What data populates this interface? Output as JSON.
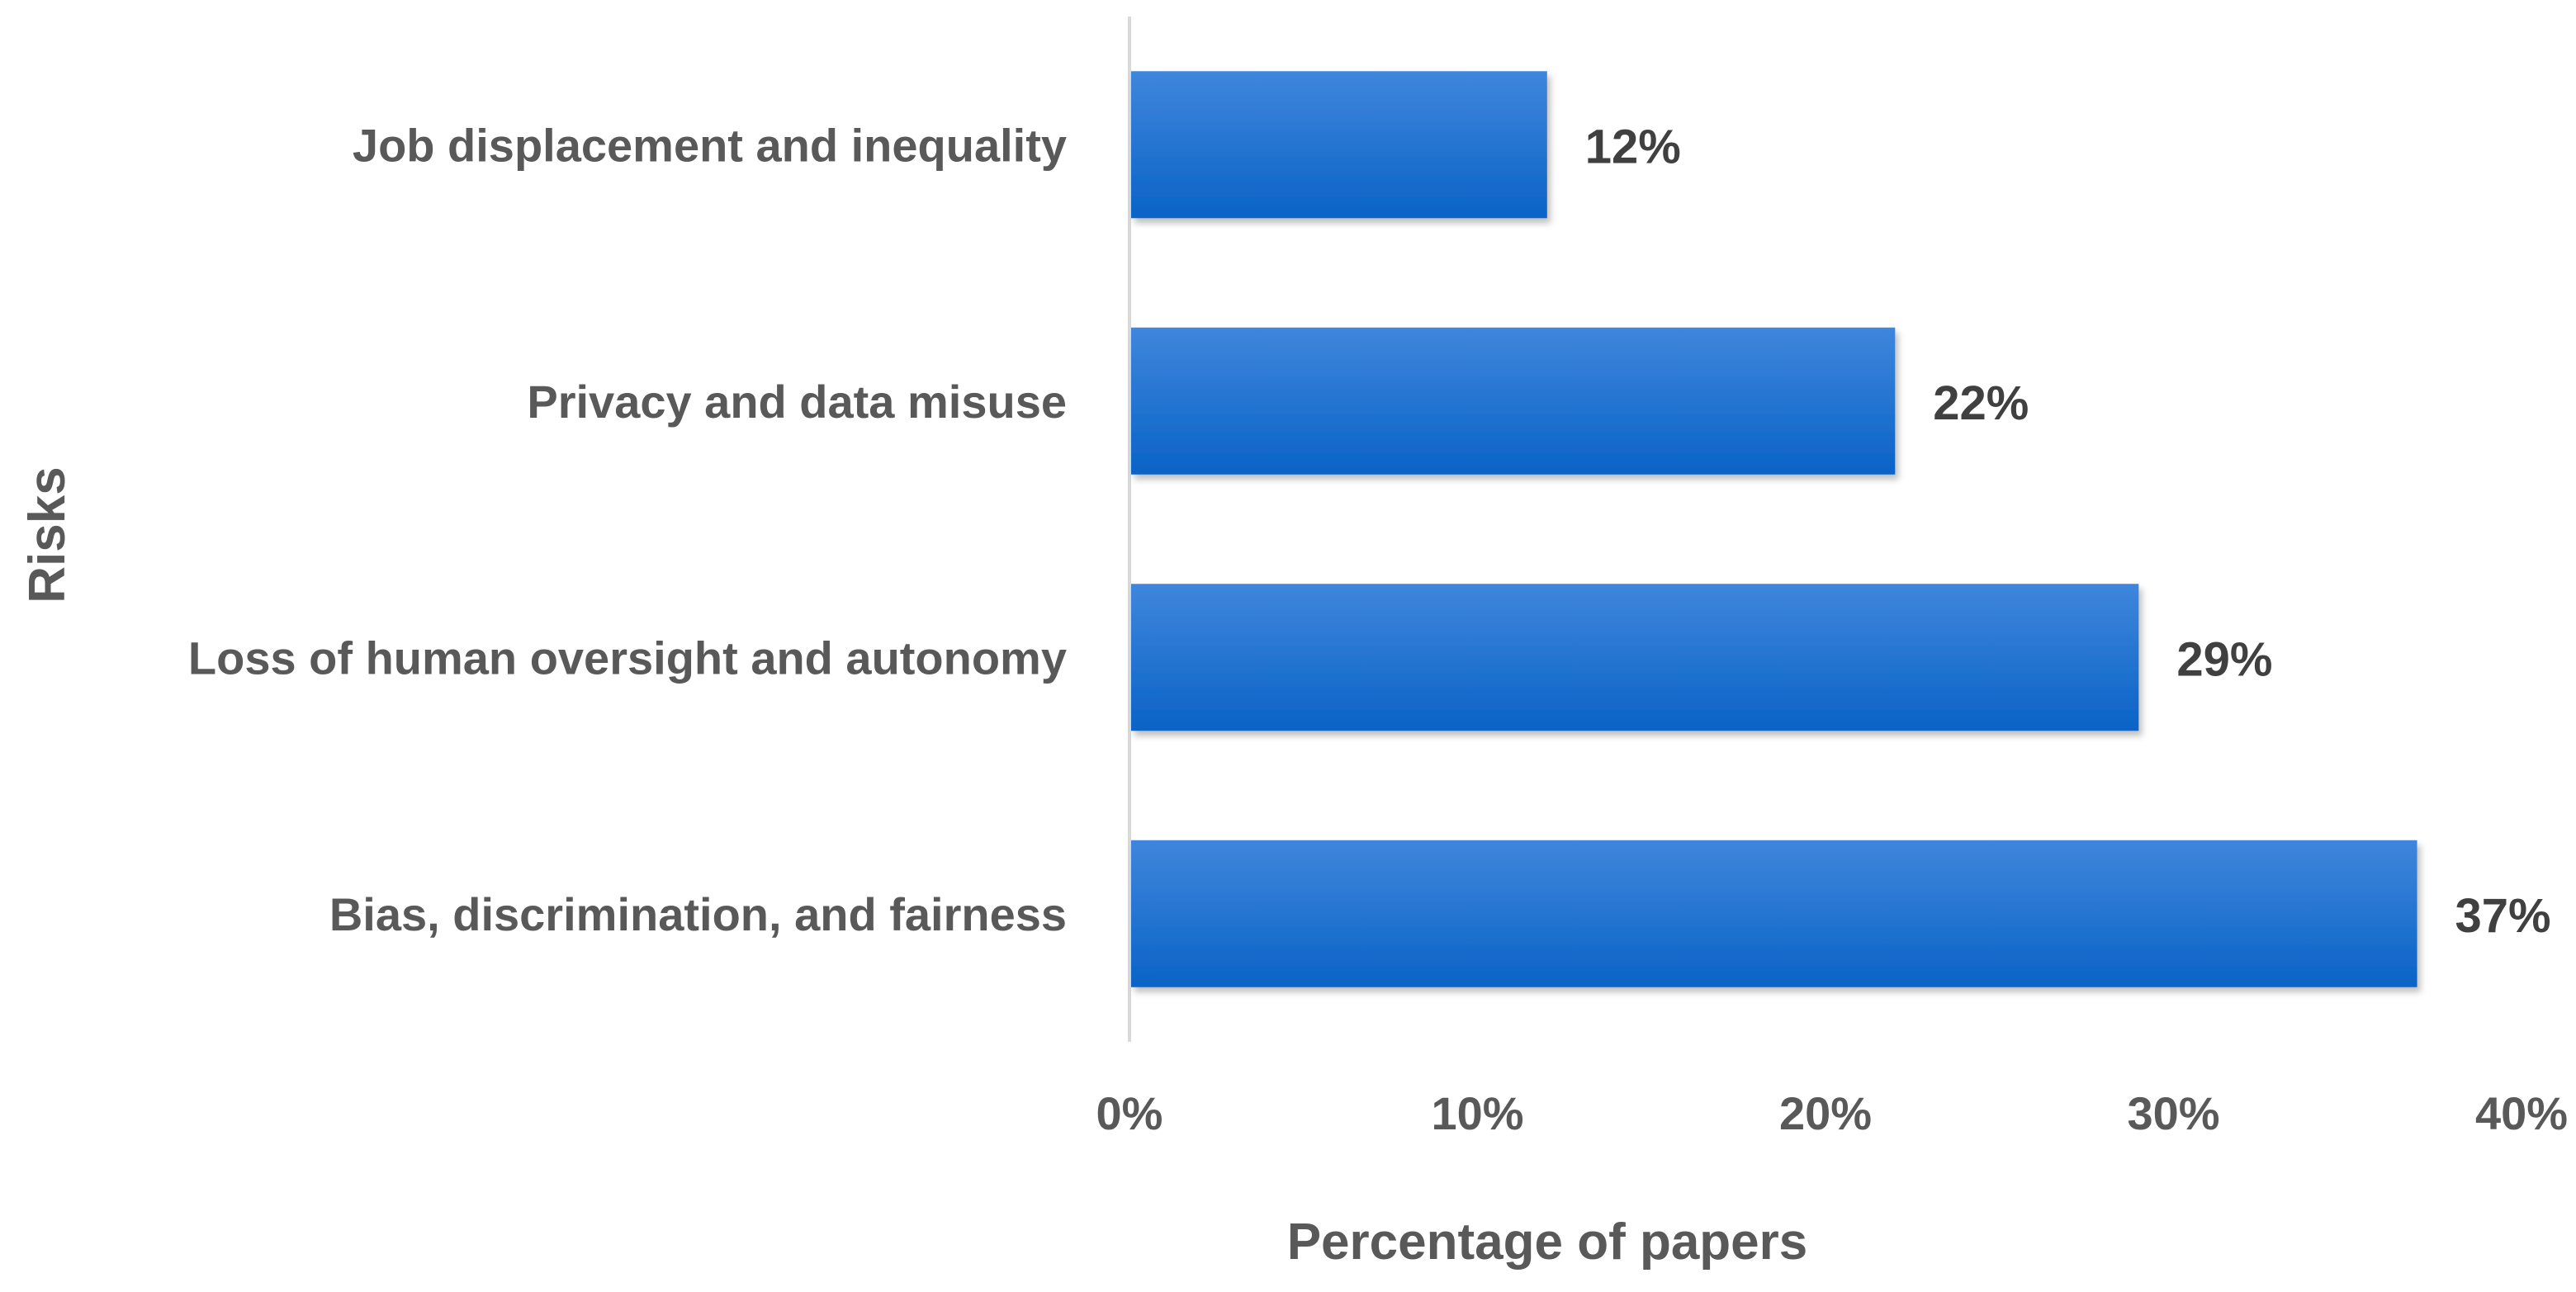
{
  "chart_data": {
    "type": "bar",
    "orientation": "horizontal",
    "categories": [
      "Job displacement and inequality",
      "Privacy and data misuse",
      "Loss of human oversight and autonomy",
      "Bias, discrimination, and fairness"
    ],
    "values": [
      12,
      22,
      29,
      37
    ],
    "value_labels": [
      "12%",
      "22%",
      "29%",
      "37%"
    ],
    "xlabel": "Percentage of papers",
    "ylabel": "Risks",
    "xlim": [
      0,
      40
    ],
    "x_ticks": [
      0,
      10,
      20,
      30,
      40
    ],
    "x_tick_labels": [
      "0%",
      "10%",
      "20%",
      "30%",
      "40%"
    ],
    "grid": false,
    "legend": "none",
    "colors": {
      "bar_top": "#3f86dc",
      "bar_bottom": "#0a63c6",
      "text": "#595959",
      "value_text": "#404040",
      "axis_line": "#d9d9d9"
    }
  }
}
